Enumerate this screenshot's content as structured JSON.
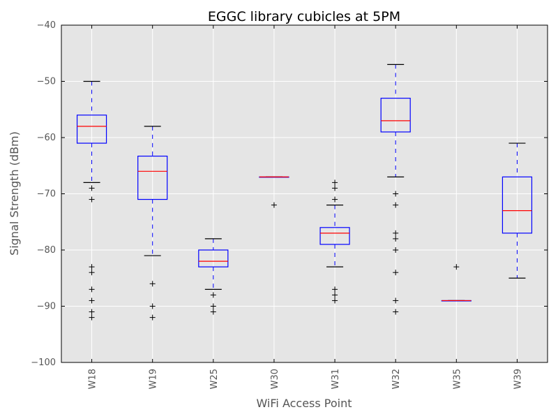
{
  "chart_data": {
    "type": "boxplot",
    "title": "EGGC library cubicles at 5PM",
    "xlabel": "WiFi Access Point",
    "ylabel": "Signal Strength (dBm)",
    "ylim": [
      -100,
      -40
    ],
    "yticks": [
      -100,
      -90,
      -80,
      -70,
      -60,
      -50,
      -40
    ],
    "ytick_labels": [
      "−100",
      "−90",
      "−80",
      "−70",
      "−60",
      "−50",
      "−40"
    ],
    "grid": true,
    "colors": {
      "plot_background": "#e5e5e5",
      "grid": "#ffffff",
      "box": "#0000ff",
      "median": "#ff0000",
      "cap": "#000000",
      "flier": "#000000"
    },
    "categories": [
      "W18",
      "W19",
      "W25",
      "W30",
      "W31",
      "W32",
      "W35",
      "W39"
    ],
    "boxes": [
      {
        "label": "W18",
        "whisker_high": -50,
        "q3": -56,
        "median": -58,
        "q1": -61,
        "whisker_low": -68,
        "fliers": [
          -69,
          -71,
          -83,
          -84,
          -87,
          -89,
          -91,
          -92
        ]
      },
      {
        "label": "W19",
        "whisker_high": -58,
        "q3": -63.3,
        "median": -66,
        "q1": -71,
        "whisker_low": -81,
        "fliers": [
          -86,
          -90,
          -92
        ]
      },
      {
        "label": "W25",
        "whisker_high": -78,
        "q3": -80,
        "median": -82,
        "q1": -83,
        "whisker_low": -87,
        "fliers": [
          -88,
          -90,
          -91
        ]
      },
      {
        "label": "W30",
        "whisker_high": -67,
        "q3": -67,
        "median": -67,
        "q1": -67,
        "whisker_low": -67,
        "fliers": [
          -72
        ]
      },
      {
        "label": "W31",
        "whisker_high": -72,
        "q3": -76,
        "median": -77,
        "q1": -79,
        "whisker_low": -83,
        "fliers": [
          -68,
          -69,
          -71,
          -87,
          -88,
          -89
        ]
      },
      {
        "label": "W32",
        "whisker_high": -47,
        "q3": -53,
        "median": -57,
        "q1": -59,
        "whisker_low": -67,
        "fliers": [
          -70,
          -72,
          -77,
          -78,
          -80,
          -84,
          -89,
          -91
        ]
      },
      {
        "label": "W35",
        "whisker_high": -89,
        "q3": -89,
        "median": -89,
        "q1": -89,
        "whisker_low": -89,
        "fliers": [
          -83
        ]
      },
      {
        "label": "W39",
        "whisker_high": -61,
        "q3": -67,
        "median": -73,
        "q1": -77,
        "whisker_low": -85,
        "fliers": []
      }
    ]
  }
}
